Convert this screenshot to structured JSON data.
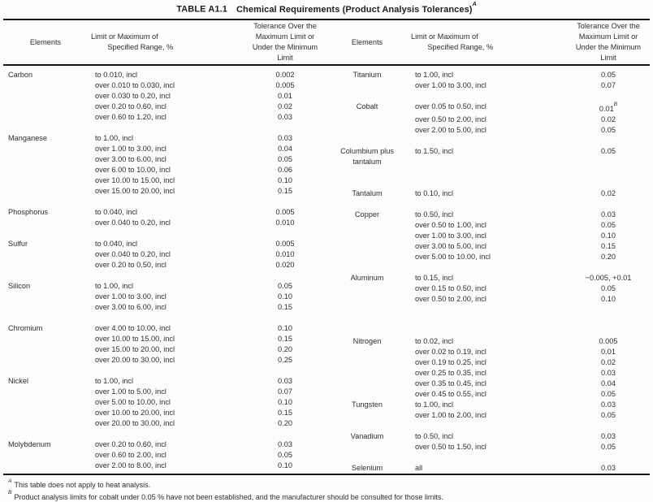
{
  "title": {
    "prefix": "TABLE A1.1",
    "main": "Chemical Requirements (Product Analysis Tolerances)",
    "sup": "A"
  },
  "headers": {
    "elements": "Elements",
    "limit": "Limit or Maximum of\n        Specified Range, %",
    "tolerance": "Tolerance Over the\nMaximum Limit or\nUnder the Minimum\nLimit"
  },
  "left_column": [
    {
      "element": "Carbon",
      "rows": [
        {
          "range": "to 0.010, incl",
          "tol": "0.002"
        },
        {
          "range": "over 0.010 to 0.030, incl",
          "tol": "0.005"
        },
        {
          "range": "over 0.030 to 0.20, incl",
          "tol": "0.01"
        },
        {
          "range": "over 0.20 to 0.60, incl",
          "tol": "0.02"
        },
        {
          "range": "over 0.60 to 1.20, incl",
          "tol": "0.03"
        }
      ]
    },
    {
      "element": "Manganese",
      "rows": [
        {
          "range": "to 1.00, incl",
          "tol": "0.03"
        },
        {
          "range": "over 1.00 to 3.00, incl",
          "tol": "0.04"
        },
        {
          "range": "over 3.00 to 6.00, incl",
          "tol": "0.05"
        },
        {
          "range": "over 6.00 to 10.00, incl",
          "tol": "0.06"
        },
        {
          "range": "over 10.00 to 15.00, incl",
          "tol": "0.10"
        },
        {
          "range": "over 15.00 to 20.00, incl",
          "tol": "0.15"
        }
      ]
    },
    {
      "element": "Phosphorus",
      "rows": [
        {
          "range": "to 0.040, incl",
          "tol": "0.005"
        },
        {
          "range": "over 0.040 to 0.20, incl",
          "tol": "0.010"
        }
      ]
    },
    {
      "element": "Sulfur",
      "rows": [
        {
          "range": "to 0.040, incl",
          "tol": "0.005"
        },
        {
          "range": "over 0.040 to 0.20, incl",
          "tol": "0.010"
        },
        {
          "range": "over 0.20 to 0.50, incl",
          "tol": "0.020"
        }
      ]
    },
    {
      "element": "Silicon",
      "rows": [
        {
          "range": "to 1.00, incl",
          "tol": "0.05"
        },
        {
          "range": "over 1.00 to 3.00, incl",
          "tol": "0.10"
        },
        {
          "range": "over 3.00 to 6.00, incl",
          "tol": "0.15"
        }
      ]
    },
    {
      "element": "Chromium",
      "rows": [
        {
          "range": "over 4.00 to 10.00, incl",
          "tol": "0.10"
        },
        {
          "range": "over 10.00 to 15.00, incl",
          "tol": "0.15"
        },
        {
          "range": "over 15.00 to 20.00, incl",
          "tol": "0.20"
        },
        {
          "range": "over 20.00 to 30.00, incl",
          "tol": "0.25"
        }
      ]
    },
    {
      "element": "Nickel",
      "rows": [
        {
          "range": "to 1.00, incl",
          "tol": "0.03"
        },
        {
          "range": "over 1.00 to 5.00, incl",
          "tol": "0.07"
        },
        {
          "range": "over 5.00 to 10.00, incl",
          "tol": "0.10"
        },
        {
          "range": "over 10.00 to 20.00, incl",
          "tol": "0.15"
        },
        {
          "range": "over 20.00 to 30.00, incl",
          "tol": "0.20"
        }
      ]
    },
    {
      "element": "Molybdenum",
      "rows": [
        {
          "range": "over 0.20 to 0.60, incl",
          "tol": "0.03"
        },
        {
          "range": "over 0.60 to 2.00, incl",
          "tol": "0.05"
        },
        {
          "range": "over 2.00 to 8.00, incl",
          "tol": "0.10"
        }
      ]
    }
  ],
  "right_column": [
    {
      "element": "Titanium",
      "rows": [
        {
          "range": "to 1.00, incl",
          "tol": "0.05"
        },
        {
          "range": "over 1.00 to 3.00, incl",
          "tol": "0.07"
        }
      ]
    },
    {
      "element": "Cobalt",
      "rows": [
        {
          "range": "over 0.05 to 0.50, incl",
          "tol": "0.01",
          "sup": "B"
        },
        {
          "range": "over 0.50 to 2.00, incl",
          "tol": "0.02"
        },
        {
          "range": "over 2.00 to 5.00, incl",
          "tol": "0.05"
        }
      ]
    },
    {
      "element": "Columbium plus\ntantalum",
      "rows": [
        {
          "range": "to 1.50, incl",
          "tol": "0.05"
        }
      ]
    },
    {
      "element": "Tantalum",
      "gap": 26,
      "rows": [
        {
          "range": "to 0.10, incl",
          "tol": "0.02"
        }
      ]
    },
    {
      "element": "Copper",
      "rows": [
        {
          "range": "to 0.50, incl",
          "tol": "0.03"
        },
        {
          "range": "over 0.50 to 1.00, incl",
          "tol": "0.05"
        },
        {
          "range": "over 1.00 to 3.00, incl",
          "tol": "0.10"
        },
        {
          "range": "over 3.00 to 5.00, incl",
          "tol": "0.15"
        },
        {
          "range": "over 5.00 to 10.00, incl",
          "tol": "0.20"
        }
      ]
    },
    {
      "element": "Aluminum",
      "rows": [
        {
          "range": "to 0.15, incl",
          "tol": "−0.005, +0.01"
        },
        {
          "range": "over 0.15 to 0.50, incl",
          "tol": "0.05"
        },
        {
          "range": "over 0.50 to 2.00, incl",
          "tol": "0.10"
        }
      ]
    },
    {
      "element": "Nitrogen",
      "gap": 39,
      "rows": [
        {
          "range": "to 0.02, incl",
          "tol": "0.005"
        },
        {
          "range": "over 0.02 to 0.19, incl",
          "tol": "0.01"
        },
        {
          "range": "over 0.19 to 0.25, incl",
          "tol": "0.02"
        },
        {
          "range": "over 0.25 to 0.35, incl",
          "tol": "0.03"
        },
        {
          "range": "over 0.35 to 0.45, incl",
          "tol": "0.04"
        },
        {
          "range": "over 0.45 to 0.55, incl",
          "tol": "0.05"
        }
      ]
    },
    {
      "element": "Tungsten",
      "gap": 0,
      "rows": [
        {
          "range": "to 1.00, incl",
          "tol": "0.03"
        },
        {
          "range": "over 1.00 to 2.00, incl",
          "tol": "0.05"
        }
      ]
    },
    {
      "element": "Vanadium",
      "rows": [
        {
          "range": "to 0.50, incl",
          "tol": "0.03"
        },
        {
          "range": "over 0.50 to 1.50, incl",
          "tol": "0.05"
        }
      ]
    },
    {
      "element": "Selenium",
      "rows": [
        {
          "range": "all",
          "tol": "0.03"
        }
      ]
    }
  ],
  "footnotes": [
    {
      "sup": "A",
      "text": "This table does not apply to heat analysis."
    },
    {
      "sup": "B",
      "text": "Product analysis limits for cobalt under 0.05 % have not been established, and the manufacturer should be consulted for those limits."
    }
  ],
  "colors": {
    "text": "#2e2e2e",
    "rule": "#161616",
    "page_bg": "#fcfcfc"
  }
}
